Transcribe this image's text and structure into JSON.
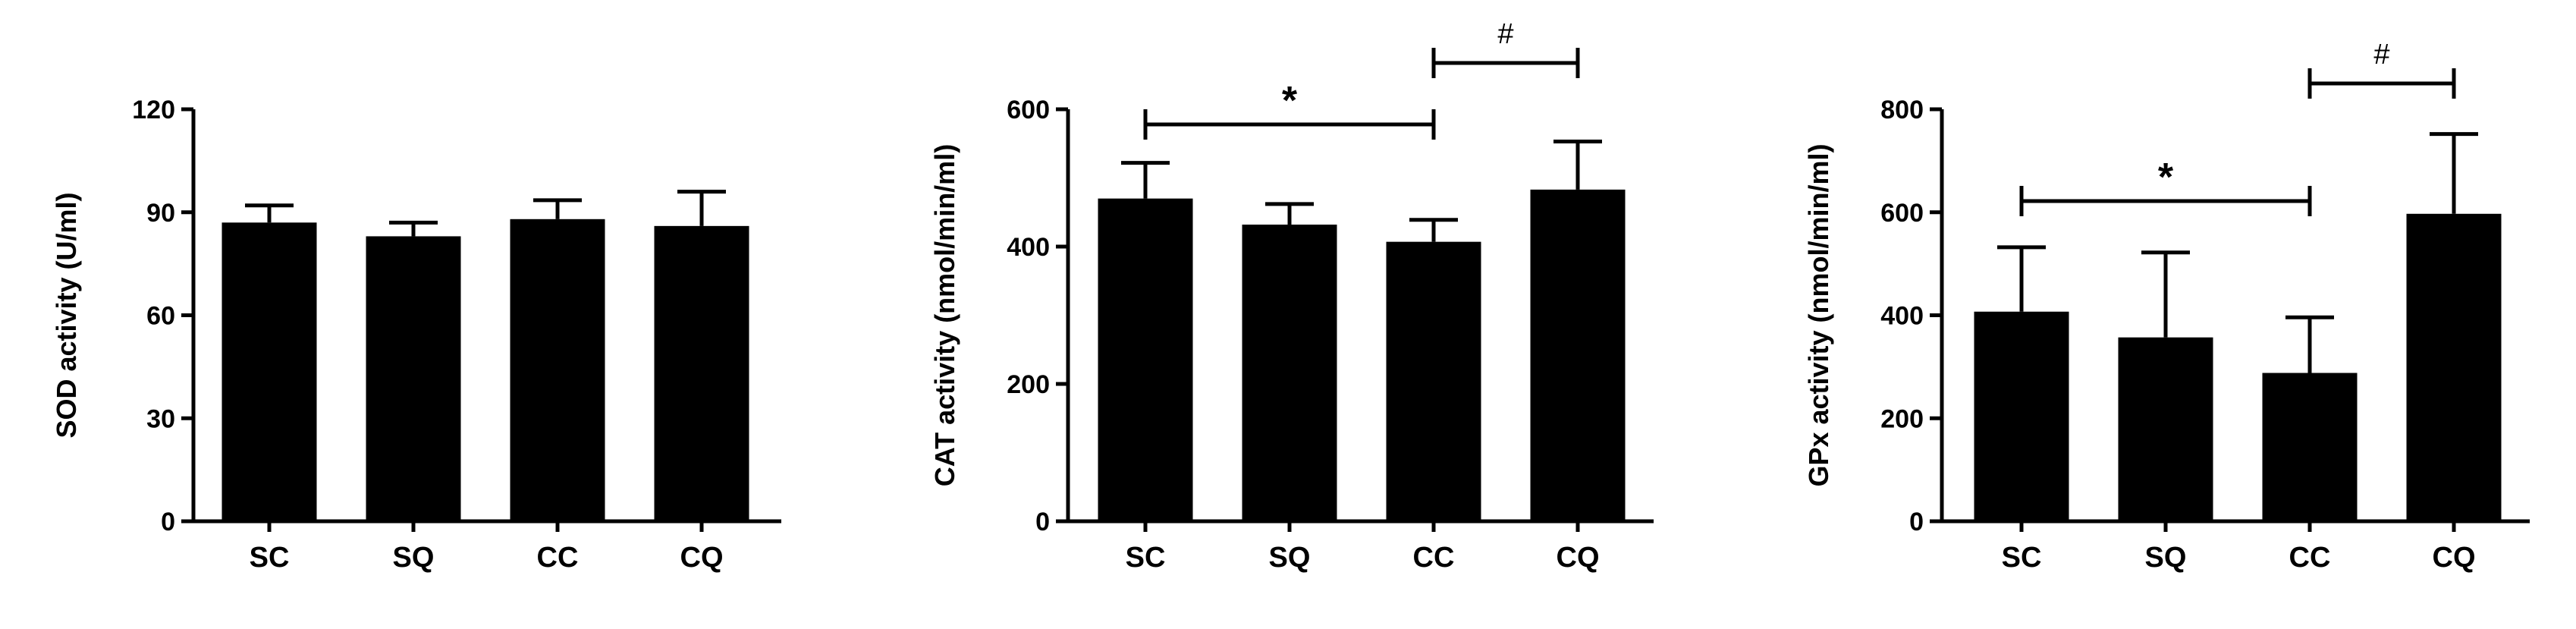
{
  "chart_data": [
    {
      "type": "bar",
      "categories": [
        "SC",
        "SQ",
        "CC",
        "CQ"
      ],
      "values": [
        87,
        83,
        88,
        86
      ],
      "errors": [
        5,
        4,
        5.5,
        10
      ],
      "ylabel": "SOD activity (U/ml)",
      "ylim": [
        0,
        120
      ],
      "yticks": [
        "0",
        "30",
        "60",
        "90",
        "120"
      ],
      "bar_color": "#000000",
      "significance": []
    },
    {
      "type": "bar",
      "categories": [
        "SC",
        "SQ",
        "CC",
        "CQ"
      ],
      "values": [
        470,
        432,
        407,
        483
      ],
      "errors": [
        52,
        30,
        32,
        70
      ],
      "ylabel": "CAT activity (nmol/min/ml)",
      "ylim": [
        0,
        600
      ],
      "yticks": [
        "0",
        "200",
        "400",
        "600"
      ],
      "bar_color": "#000000",
      "significance": [
        {
          "from": "SC",
          "to": "CC",
          "label": "*"
        },
        {
          "from": "CC",
          "to": "CQ",
          "label": "#"
        }
      ]
    },
    {
      "type": "bar",
      "categories": [
        "SC",
        "SQ",
        "CC",
        "CQ"
      ],
      "values": [
        407,
        357,
        288,
        597
      ],
      "errors": [
        125,
        165,
        108,
        155
      ],
      "ylabel": "GPx activity (nmol/min/ml)",
      "ylim": [
        0,
        800
      ],
      "yticks": [
        "0",
        "200",
        "400",
        "600",
        "800"
      ],
      "bar_color": "#000000",
      "significance": [
        {
          "from": "SC",
          "to": "CC",
          "label": "*"
        },
        {
          "from": "CC",
          "to": "CQ",
          "label": "#"
        }
      ]
    }
  ]
}
